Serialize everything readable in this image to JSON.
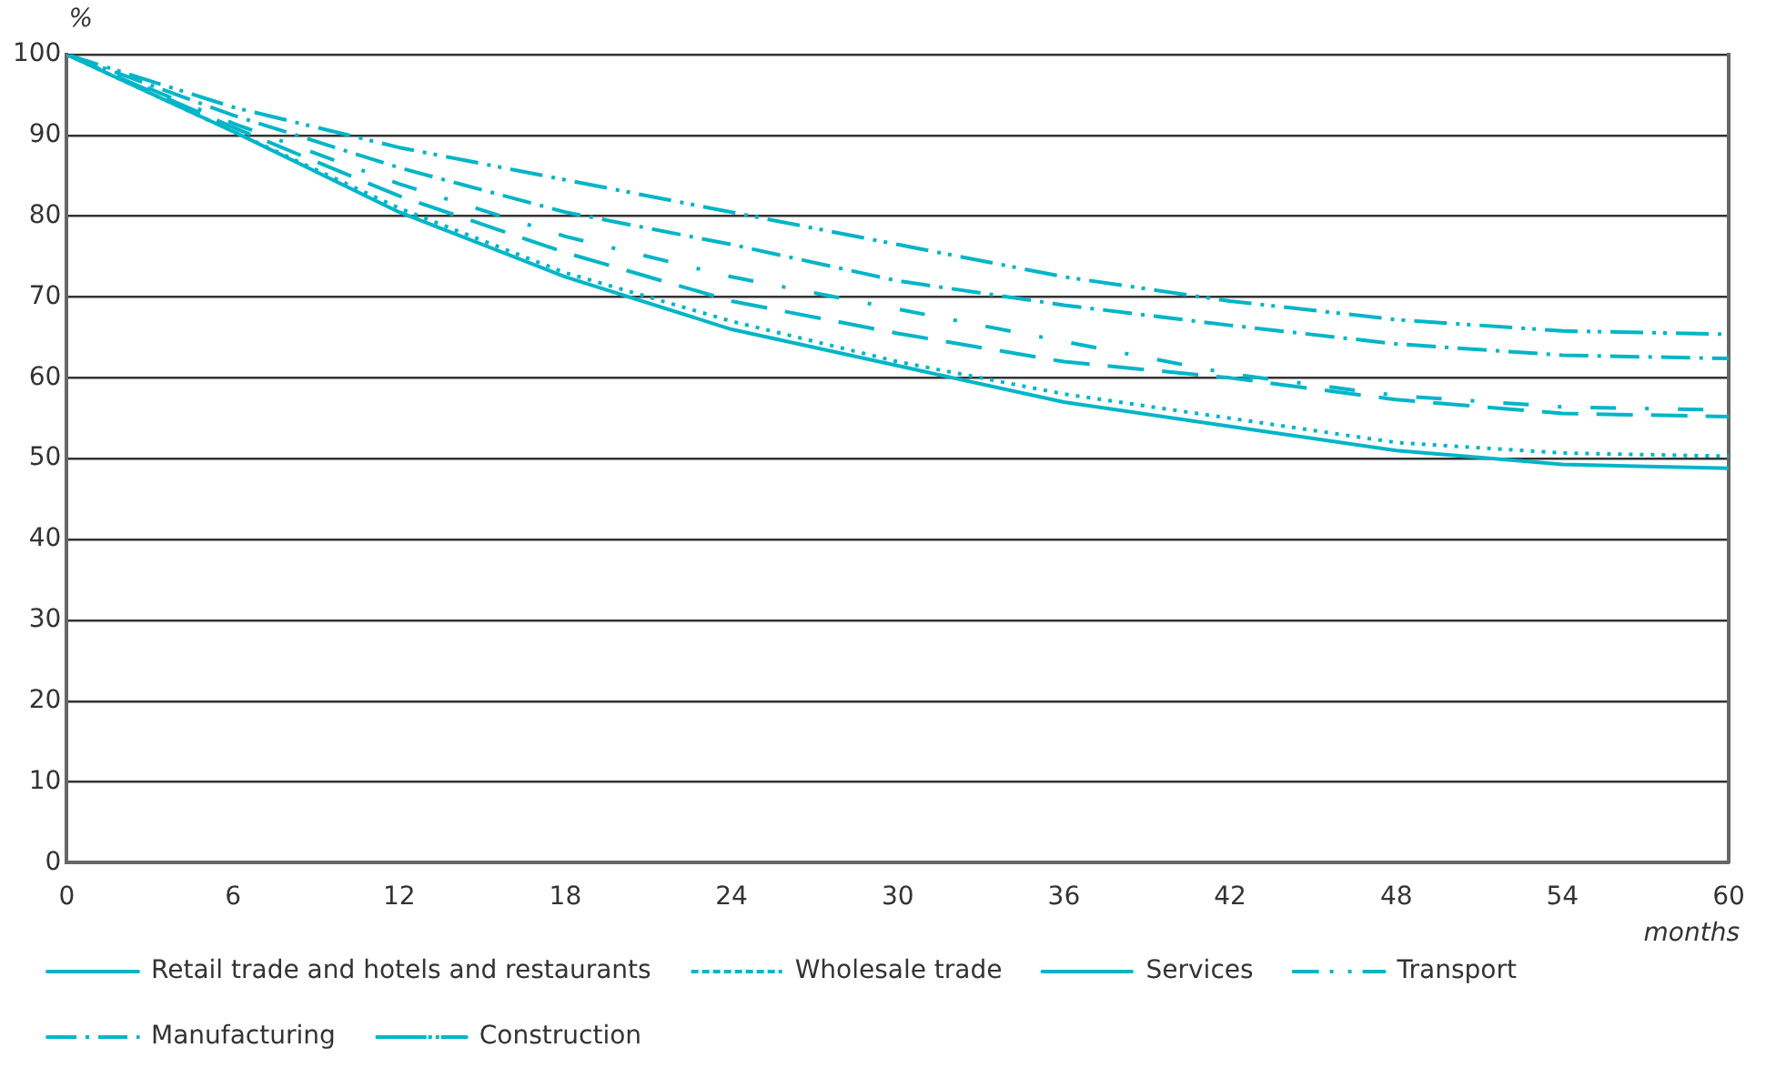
{
  "chart_data": {
    "type": "line",
    "xlabel": "months",
    "ylabel": "%",
    "x": [
      0,
      6,
      12,
      18,
      24,
      30,
      36,
      42,
      48,
      54,
      60
    ],
    "xlim": [
      0,
      60
    ],
    "xticks": [
      0,
      6,
      12,
      18,
      24,
      30,
      36,
      42,
      48,
      54,
      60
    ],
    "ylim": [
      0,
      100
    ],
    "yticks": [
      0,
      10,
      20,
      30,
      40,
      50,
      60,
      70,
      80,
      90,
      100
    ],
    "grid": "y",
    "legend": "bottom",
    "marker": "none",
    "series": [
      {
        "name": "Retail trade and hotels and restaurants",
        "color": "#00b5c8",
        "line_style": "solid",
        "values": [
          100,
          90.5,
          80.5,
          72.5,
          66,
          61.5,
          57,
          54,
          51,
          49.3,
          48.8
        ]
      },
      {
        "name": "Wholesale trade",
        "color": "#00b5c8",
        "line_style": "dotted",
        "values": [
          100,
          90.5,
          81,
          73,
          67,
          62,
          58,
          55,
          52,
          50.7,
          50.3
        ]
      },
      {
        "name": "Services",
        "color": "#00b5c8",
        "line_style": "dashed",
        "values": [
          100,
          91,
          82.5,
          75.5,
          69.5,
          65.5,
          62,
          60,
          57.3,
          55.6,
          55.2
        ]
      },
      {
        "name": "Transport",
        "color": "#00b5c8",
        "line_style": "dashed",
        "values": [
          100,
          91.5,
          84,
          77.5,
          72.5,
          68.5,
          64.5,
          60.5,
          57.8,
          56.4,
          56
        ]
      },
      {
        "name": "Manufacturing",
        "color": "#00b5c8",
        "line_style": "dashed",
        "values": [
          100,
          92.5,
          86,
          80.5,
          76.5,
          72,
          69,
          66.5,
          64.2,
          62.8,
          62.4
        ]
      },
      {
        "name": "Construction",
        "color": "#00b5c8",
        "line_style": "dashed",
        "values": [
          100,
          93.5,
          88.5,
          84.5,
          80.5,
          76.5,
          72.5,
          69.5,
          67.2,
          65.8,
          65.4
        ]
      }
    ]
  }
}
